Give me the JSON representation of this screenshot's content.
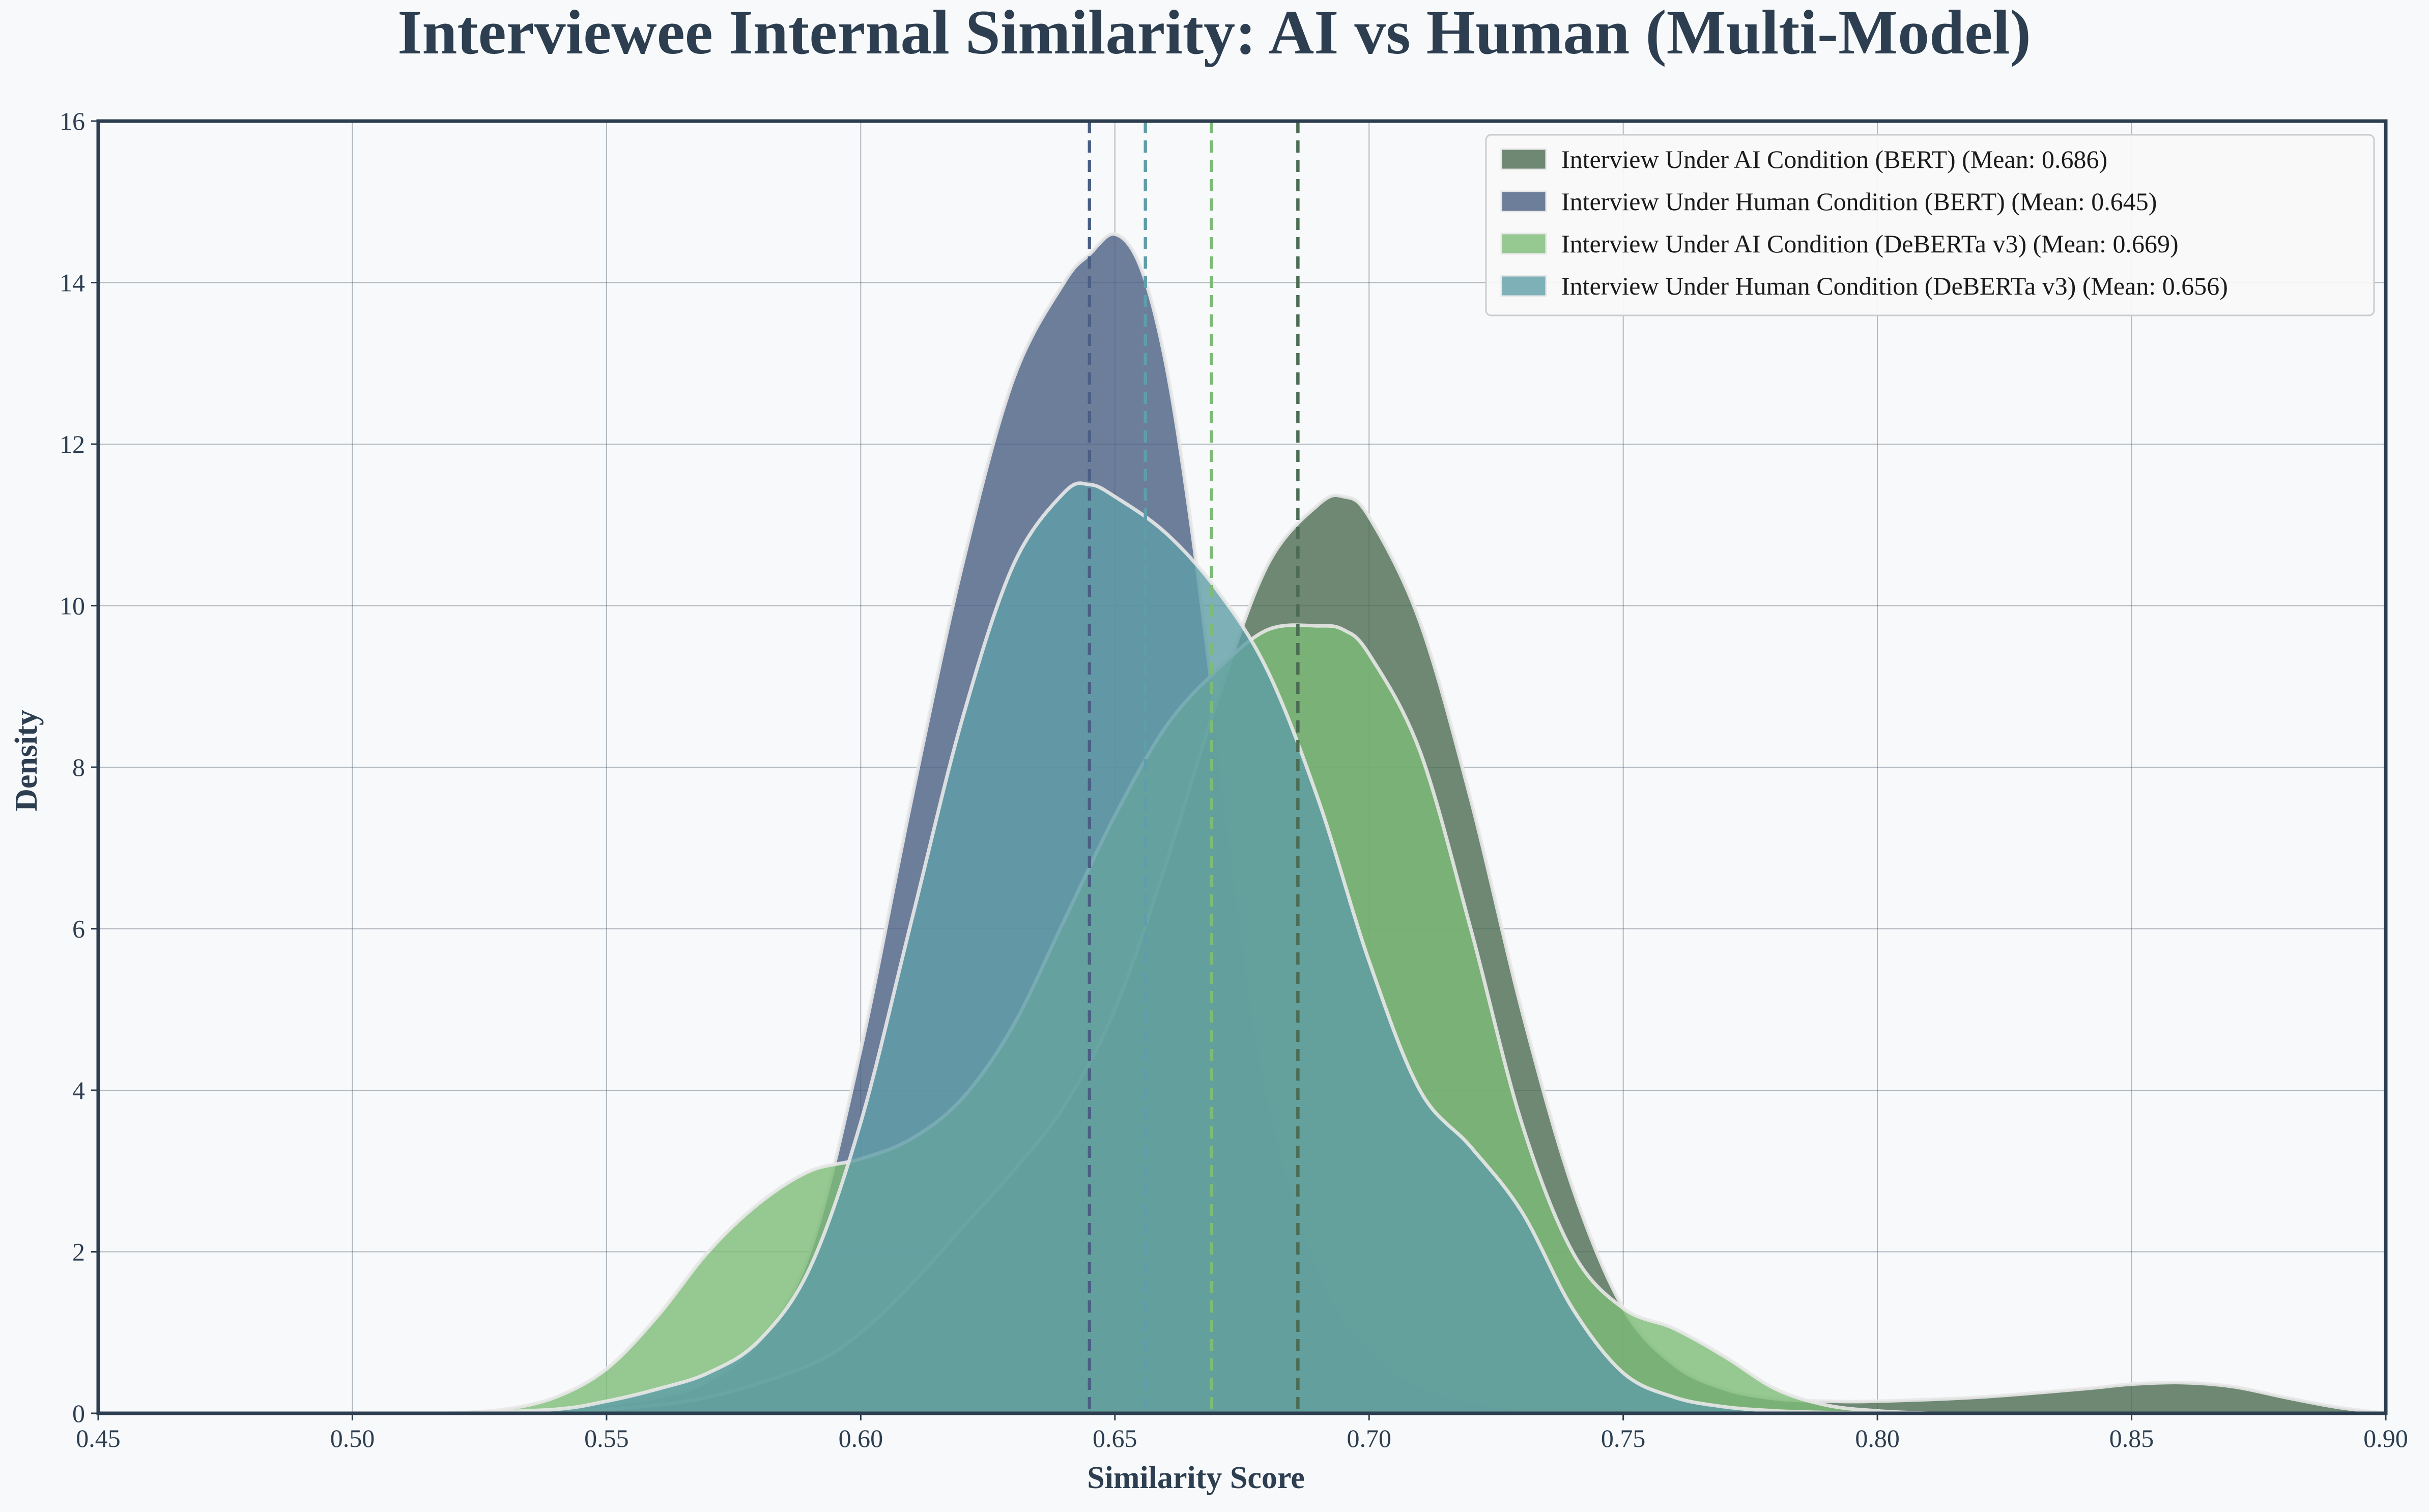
{
  "chart_data": {
    "type": "area",
    "title": "Interviewee Internal Similarity: AI vs Human (Multi-Model)",
    "xlabel": "Similarity Score",
    "ylabel": "Density",
    "xlim": [
      0.45,
      0.9
    ],
    "ylim": [
      0,
      16
    ],
    "xticks": [
      "0.45",
      "0.50",
      "0.55",
      "0.60",
      "0.65",
      "0.70",
      "0.75",
      "0.80",
      "0.85",
      "0.90"
    ],
    "yticks": [
      "0",
      "2",
      "4",
      "6",
      "8",
      "10",
      "12",
      "14",
      "16"
    ],
    "grid": true,
    "legend_position": "top-right",
    "series": [
      {
        "name": "Interview Under Human Condition (BERT) (Mean: 0.645)",
        "color": "#4a5f83",
        "mean": 0.645,
        "x": [
          0.52,
          0.54,
          0.56,
          0.57,
          0.58,
          0.59,
          0.6,
          0.61,
          0.62,
          0.63,
          0.64,
          0.645,
          0.65,
          0.655,
          0.66,
          0.665,
          0.67,
          0.675,
          0.68,
          0.69,
          0.7,
          0.71,
          0.72,
          0.73,
          0.74,
          0.75,
          0.76
        ],
        "y": [
          0.0,
          0.05,
          0.2,
          0.4,
          0.9,
          2.0,
          4.5,
          7.6,
          10.5,
          12.8,
          14.0,
          14.35,
          14.6,
          14.2,
          13.0,
          11.0,
          8.5,
          6.0,
          4.0,
          1.8,
          0.8,
          0.35,
          0.15,
          0.06,
          0.02,
          0.0,
          0.0
        ]
      },
      {
        "name": "Interview Under AI Condition (BERT) (Mean: 0.686)",
        "color": "#4b6b53",
        "mean": 0.686,
        "x": [
          0.53,
          0.55,
          0.57,
          0.59,
          0.6,
          0.61,
          0.62,
          0.63,
          0.64,
          0.65,
          0.66,
          0.67,
          0.68,
          0.69,
          0.695,
          0.7,
          0.71,
          0.72,
          0.73,
          0.74,
          0.75,
          0.76,
          0.77,
          0.78,
          0.79,
          0.8,
          0.82,
          0.84,
          0.85,
          0.86,
          0.87,
          0.88,
          0.89,
          0.9
        ],
        "y": [
          0.0,
          0.05,
          0.2,
          0.6,
          1.0,
          1.6,
          2.3,
          3.0,
          3.8,
          5.0,
          6.8,
          8.8,
          10.5,
          11.25,
          11.35,
          11.1,
          9.8,
          7.6,
          5.0,
          2.8,
          1.3,
          0.6,
          0.3,
          0.18,
          0.15,
          0.15,
          0.2,
          0.3,
          0.36,
          0.38,
          0.33,
          0.2,
          0.08,
          0.0
        ]
      },
      {
        "name": "Interview Under AI Condition (DeBERTa v3) (Mean: 0.669)",
        "color": "#7dbb77",
        "mean": 0.669,
        "x": [
          0.52,
          0.53,
          0.54,
          0.55,
          0.56,
          0.57,
          0.58,
          0.59,
          0.6,
          0.61,
          0.62,
          0.63,
          0.64,
          0.65,
          0.66,
          0.67,
          0.68,
          0.69,
          0.695,
          0.7,
          0.71,
          0.72,
          0.73,
          0.74,
          0.75,
          0.76,
          0.77,
          0.78,
          0.79,
          0.8,
          0.81
        ],
        "y": [
          0.0,
          0.05,
          0.2,
          0.55,
          1.2,
          2.0,
          2.6,
          3.0,
          3.15,
          3.4,
          3.9,
          4.8,
          6.1,
          7.4,
          8.5,
          9.2,
          9.7,
          9.75,
          9.7,
          9.4,
          8.2,
          6.0,
          3.6,
          2.0,
          1.3,
          1.05,
          0.7,
          0.3,
          0.1,
          0.03,
          0.0
        ]
      },
      {
        "name": "Interview Under Human Condition (DeBERTa v3) (Mean: 0.656)",
        "color": "#5f9ea8",
        "mean": 0.656,
        "x": [
          0.52,
          0.54,
          0.55,
          0.56,
          0.57,
          0.58,
          0.59,
          0.6,
          0.61,
          0.62,
          0.63,
          0.64,
          0.645,
          0.65,
          0.66,
          0.67,
          0.68,
          0.69,
          0.7,
          0.71,
          0.72,
          0.73,
          0.74,
          0.75,
          0.76,
          0.77,
          0.78,
          0.79,
          0.8
        ],
        "y": [
          0.0,
          0.05,
          0.15,
          0.3,
          0.5,
          0.9,
          1.8,
          3.6,
          6.1,
          8.6,
          10.5,
          11.4,
          11.5,
          11.35,
          10.9,
          10.2,
          9.2,
          7.6,
          5.6,
          4.0,
          3.3,
          2.5,
          1.3,
          0.5,
          0.2,
          0.08,
          0.03,
          0.01,
          0.0
        ]
      }
    ]
  }
}
